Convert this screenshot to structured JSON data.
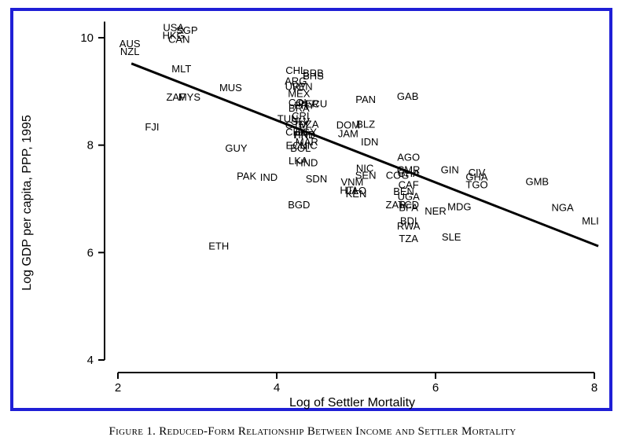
{
  "caption": "Figure 1. Reduced-Form Relationship Between Income and Settler Mortality",
  "chart_data": {
    "type": "scatter",
    "title": "",
    "xlabel": "Log of Settler Mortality",
    "ylabel": "Log GDP per capita, PPP, 1995",
    "xlim": [
      1.85,
      8.2
    ],
    "ylim": [
      3.8,
      10.5
    ],
    "xticks": [
      2,
      4,
      6,
      8
    ],
    "yticks": [
      4,
      6,
      8,
      10
    ],
    "grid": false,
    "points": [
      {
        "label": "USA",
        "x": 2.7,
        "y": 10.2
      },
      {
        "label": "SGP",
        "x": 2.87,
        "y": 10.15
      },
      {
        "label": "HKG",
        "x": 2.7,
        "y": 10.05
      },
      {
        "label": "CAN",
        "x": 2.77,
        "y": 9.98
      },
      {
        "label": "AUS",
        "x": 2.15,
        "y": 9.9
      },
      {
        "label": "NZL",
        "x": 2.15,
        "y": 9.75
      },
      {
        "label": "MLT",
        "x": 2.8,
        "y": 9.43
      },
      {
        "label": "MUS",
        "x": 3.42,
        "y": 9.08
      },
      {
        "label": "ZAF",
        "x": 2.73,
        "y": 8.9
      },
      {
        "label": "MYS",
        "x": 2.9,
        "y": 8.9
      },
      {
        "label": "FJI",
        "x": 2.43,
        "y": 8.35
      },
      {
        "label": "GUY",
        "x": 3.49,
        "y": 7.95
      },
      {
        "label": "PAK",
        "x": 3.62,
        "y": 7.43
      },
      {
        "label": "IND",
        "x": 3.9,
        "y": 7.41
      },
      {
        "label": "ETH",
        "x": 3.27,
        "y": 6.13
      },
      {
        "label": "CHL",
        "x": 4.24,
        "y": 9.4
      },
      {
        "label": "BRB",
        "x": 4.46,
        "y": 9.35
      },
      {
        "label": "BHS",
        "x": 4.46,
        "y": 9.3
      },
      {
        "label": "ARG",
        "x": 4.24,
        "y": 9.2
      },
      {
        "label": "URY",
        "x": 4.24,
        "y": 9.1
      },
      {
        "label": "VEN",
        "x": 4.32,
        "y": 9.1
      },
      {
        "label": "MEX",
        "x": 4.28,
        "y": 8.97
      },
      {
        "label": "COL",
        "x": 4.28,
        "y": 8.8
      },
      {
        "label": "PRY",
        "x": 4.35,
        "y": 8.75
      },
      {
        "label": "PER",
        "x": 4.4,
        "y": 8.78
      },
      {
        "label": "ECU",
        "x": 4.5,
        "y": 8.78
      },
      {
        "label": "BRA",
        "x": 4.28,
        "y": 8.7
      },
      {
        "label": "TUN",
        "x": 4.14,
        "y": 8.5
      },
      {
        "label": "GTM",
        "x": 4.25,
        "y": 8.38
      },
      {
        "label": "SLV",
        "x": 4.3,
        "y": 8.45
      },
      {
        "label": "CRI",
        "x": 4.3,
        "y": 8.55
      },
      {
        "label": "DZA",
        "x": 4.4,
        "y": 8.4
      },
      {
        "label": "CHN",
        "x": 4.25,
        "y": 8.25
      },
      {
        "label": "HND",
        "x": 4.35,
        "y": 8.2
      },
      {
        "label": "EGY",
        "x": 4.37,
        "y": 8.25
      },
      {
        "label": "PRY",
        "x": 4.35,
        "y": 8.2
      },
      {
        "label": "MAR",
        "x": 4.38,
        "y": 8.07
      },
      {
        "label": "ECU",
        "x": 4.25,
        "y": 8.0
      },
      {
        "label": "BOL",
        "x": 4.3,
        "y": 7.95
      },
      {
        "label": "NIC",
        "x": 4.4,
        "y": 8.0
      },
      {
        "label": "LKA",
        "x": 4.27,
        "y": 7.72
      },
      {
        "label": "HND",
        "x": 4.38,
        "y": 7.68
      },
      {
        "label": "SDN",
        "x": 4.5,
        "y": 7.38
      },
      {
        "label": "BGD",
        "x": 4.28,
        "y": 6.9
      },
      {
        "label": "PAN",
        "x": 5.12,
        "y": 8.86
      },
      {
        "label": "GAB",
        "x": 5.65,
        "y": 8.92
      },
      {
        "label": "DOM",
        "x": 4.9,
        "y": 8.38
      },
      {
        "label": "BLZ",
        "x": 5.12,
        "y": 8.4
      },
      {
        "label": "JAM",
        "x": 4.9,
        "y": 8.22
      },
      {
        "label": "IDN",
        "x": 5.17,
        "y": 8.07
      },
      {
        "label": "AGO",
        "x": 5.66,
        "y": 7.78
      },
      {
        "label": "NIC",
        "x": 5.11,
        "y": 7.58
      },
      {
        "label": "CMR",
        "x": 5.66,
        "y": 7.55
      },
      {
        "label": "SEN",
        "x": 5.12,
        "y": 7.45
      },
      {
        "label": "COG",
        "x": 5.52,
        "y": 7.45
      },
      {
        "label": "GHA",
        "x": 5.66,
        "y": 7.48
      },
      {
        "label": "VNM",
        "x": 4.95,
        "y": 7.32
      },
      {
        "label": "HTI",
        "x": 4.9,
        "y": 7.17
      },
      {
        "label": "LAO",
        "x": 5.0,
        "y": 7.16
      },
      {
        "label": "KEN",
        "x": 5.0,
        "y": 7.1
      },
      {
        "label": "CAF",
        "x": 5.66,
        "y": 7.27
      },
      {
        "label": "BEN",
        "x": 5.6,
        "y": 7.15
      },
      {
        "label": "UGA",
        "x": 5.66,
        "y": 7.05
      },
      {
        "label": "ZAR",
        "x": 5.5,
        "y": 6.9
      },
      {
        "label": "TCD",
        "x": 5.66,
        "y": 6.9
      },
      {
        "label": "BFA",
        "x": 5.66,
        "y": 6.85
      },
      {
        "label": "BDI",
        "x": 5.66,
        "y": 6.6
      },
      {
        "label": "RWA",
        "x": 5.66,
        "y": 6.5
      },
      {
        "label": "TZA",
        "x": 5.66,
        "y": 6.27
      },
      {
        "label": "NER",
        "x": 6.0,
        "y": 6.78
      },
      {
        "label": "MDG",
        "x": 6.3,
        "y": 6.86
      },
      {
        "label": "SLE",
        "x": 6.2,
        "y": 6.3
      },
      {
        "label": "GIN",
        "x": 6.18,
        "y": 7.55
      },
      {
        "label": "CIV",
        "x": 6.52,
        "y": 7.5
      },
      {
        "label": "GHA",
        "x": 6.52,
        "y": 7.42
      },
      {
        "label": "TGO",
        "x": 6.52,
        "y": 7.27
      },
      {
        "label": "GMB",
        "x": 7.28,
        "y": 7.33
      },
      {
        "label": "NGA",
        "x": 7.6,
        "y": 6.85
      },
      {
        "label": "MLI",
        "x": 7.95,
        "y": 6.6
      }
    ],
    "fit_line": {
      "x": [
        2.17,
        8.05
      ],
      "y": [
        9.52,
        6.12
      ]
    }
  }
}
